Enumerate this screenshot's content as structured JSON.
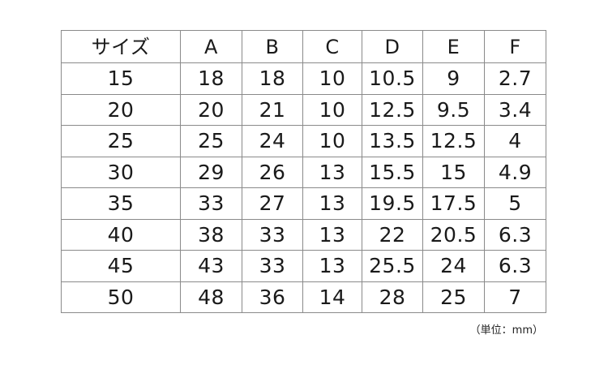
{
  "table": {
    "headers": [
      "サイズ",
      "A",
      "B",
      "C",
      "D",
      "E",
      "F"
    ],
    "rows": [
      [
        "15",
        "18",
        "18",
        "10",
        "10.5",
        "9",
        "2.7"
      ],
      [
        "20",
        "20",
        "21",
        "10",
        "12.5",
        "9.5",
        "3.4"
      ],
      [
        "25",
        "25",
        "24",
        "10",
        "13.5",
        "12.5",
        "4"
      ],
      [
        "30",
        "29",
        "26",
        "13",
        "15.5",
        "15",
        "4.9"
      ],
      [
        "35",
        "33",
        "27",
        "13",
        "19.5",
        "17.5",
        "5"
      ],
      [
        "40",
        "38",
        "33",
        "13",
        "22",
        "20.5",
        "6.3"
      ],
      [
        "45",
        "43",
        "33",
        "13",
        "25.5",
        "24",
        "6.3"
      ],
      [
        "50",
        "48",
        "36",
        "14",
        "28",
        "25",
        "7"
      ]
    ]
  },
  "unit_note": "（単位：mm）"
}
